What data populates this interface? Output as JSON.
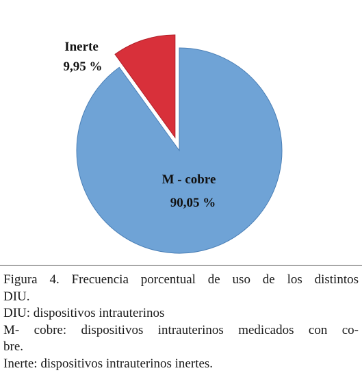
{
  "chart_data": {
    "type": "pie",
    "exploded": true,
    "slices": [
      {
        "label": "M - cobre",
        "value": 90.05,
        "display": "90,05 %",
        "color": "#6fa3d6"
      },
      {
        "label": "Inerte",
        "value": 9.95,
        "display": "9,95 %",
        "color": "#d8303a"
      }
    ]
  },
  "caption": {
    "line1": "Figura 4.  Frecuencia porcentual de uso de los distintos",
    "line2": "DIU.",
    "line3": "DIU: dispositivos intrauterinos",
    "line4": "M- cobre: dispositivos intrauterinos medicados con co-",
    "line5": "bre.",
    "line6": "Inerte: dispositivos intrauterinos inertes."
  }
}
